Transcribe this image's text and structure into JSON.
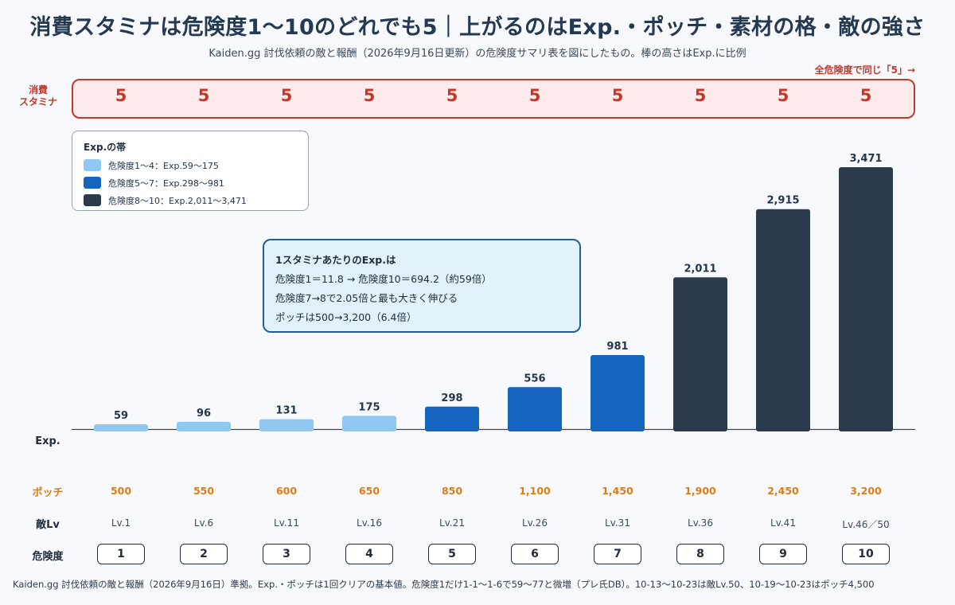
{
  "title": "消費スタミナは危険度1〜10のどれでも5｜上がるのはExp.・ポッチ・素材の格・敵の強さ",
  "subtitle": "Kaiden.gg 討伐依頼の敵と報酬（2026年9月16日更新）の危険度サマリ表を図にしたもの。棒の高さはExp.に比例",
  "same_note": "全危険度で同じ「5」→",
  "stamina_label": "消費\nスタミナ",
  "legend": {
    "title": "Exp.の帯",
    "items": [
      {
        "label": "危険度1〜4：Exp.59〜175",
        "color": "#90c8f2"
      },
      {
        "label": "危険度5〜7：Exp.298〜981",
        "color": "#1565c0"
      },
      {
        "label": "危険度8〜10：Exp.2,011〜3,471",
        "color": "#2b3a4d"
      }
    ]
  },
  "note": {
    "head": "1スタミナあたりのExp.は",
    "lines": [
      "危険度1＝11.8 → 危険度10＝694.2（約59倍）",
      "危険度7→8で2.05倍と最も大きく伸びる",
      "ポッチは500→3,200（6.4倍）"
    ]
  },
  "row_labels": {
    "exp": "Exp.",
    "pochi": "ポッチ",
    "enemy_lv": "敵Lv",
    "danger": "危険度"
  },
  "chart_data": {
    "type": "bar",
    "categories": [
      "1",
      "2",
      "3",
      "4",
      "5",
      "6",
      "7",
      "8",
      "9",
      "10"
    ],
    "values": [
      59,
      96,
      131,
      175,
      298,
      556,
      981,
      2011,
      2915,
      3471
    ],
    "value_labels": [
      "59",
      "96",
      "131",
      "175",
      "298",
      "556",
      "981",
      "2,011",
      "2,915",
      "3,471"
    ],
    "bands": [
      0,
      0,
      0,
      0,
      1,
      1,
      1,
      2,
      2,
      2
    ],
    "band_colors": [
      "#90c8f2",
      "#1565c0",
      "#2b3a4d"
    ],
    "ylim": [
      0,
      3471
    ],
    "stamina": [
      "5",
      "5",
      "5",
      "5",
      "5",
      "5",
      "5",
      "5",
      "5",
      "5"
    ],
    "pochi": [
      "500",
      "550",
      "600",
      "650",
      "850",
      "1,100",
      "1,450",
      "1,900",
      "2,450",
      "3,200"
    ],
    "enemy_lv": [
      "Lv.1",
      "Lv.6",
      "Lv.11",
      "Lv.16",
      "Lv.21",
      "Lv.26",
      "Lv.31",
      "Lv.36",
      "Lv.41",
      "Lv.46／50"
    ]
  },
  "footer": "Kaiden.gg 討伐依頼の敵と報酬（2026年9月16日）準拠。Exp.・ポッチは1回クリアの基本値。危険度1だけ1-1〜1-6で59〜77と微増（プレ氏DB）。10-13〜10-23は敵Lv.50、10-19〜10-23はポッチ4,500"
}
